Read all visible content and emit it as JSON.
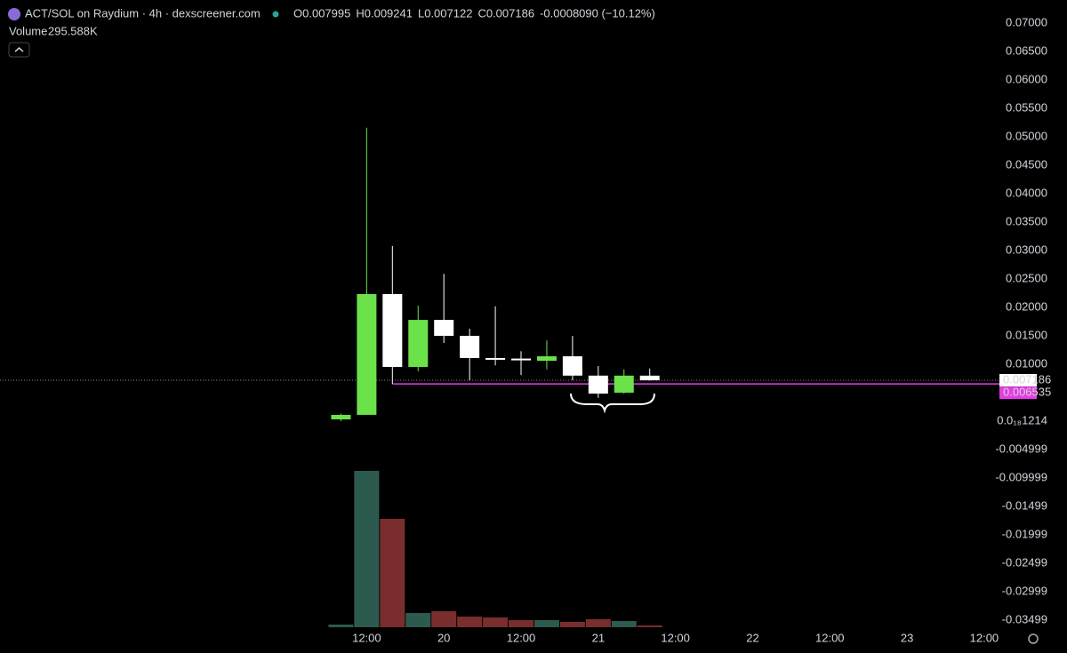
{
  "chart_data": {
    "type": "candlestick",
    "title": "ACT/SOL on Raydium · 4h · dexscreener.com",
    "ohlc_letters": [
      "O",
      "H",
      "L",
      "C"
    ],
    "change_label": "-0.0008090 (−10.12%)",
    "up_color": "#6be24a",
    "down_color": "#ffffff",
    "x": [
      8,
      12,
      16,
      20,
      24,
      28,
      32,
      36,
      40,
      44,
      48,
      52,
      56
    ],
    "open": [
      0.0003,
      0.0011,
      0.02234,
      0.00953,
      0.0178,
      0.015,
      0.0111,
      0.011,
      0.0106,
      0.0114,
      0.008,
      0.005,
      0.007995
    ],
    "high": [
      0.0013,
      0.0516,
      0.0308,
      0.0203,
      0.0259,
      0.01625,
      0.0202,
      0.0123,
      0.0142,
      0.015,
      0.0097,
      0.0091,
      0.009241
    ],
    "low": [
      0.0,
      0.0011,
      0.006535,
      0.00875,
      0.01375,
      0.0072,
      0.0098,
      0.0081,
      0.0091,
      0.0072,
      0.0041,
      0.0048,
      0.007122
    ],
    "close": [
      0.0011,
      0.02234,
      0.00953,
      0.0178,
      0.015,
      0.0111,
      0.011,
      0.0107,
      0.0114,
      0.008,
      0.00484,
      0.008,
      0.007186
    ],
    "volume": {
      "name": "Volume",
      "up_color": "#2d5a4f",
      "down_color": "#7a2d2d",
      "values": [
        450000,
        26400000,
        18300000,
        2400000,
        2700000,
        1800000,
        1650000,
        1200000,
        1200000,
        900000,
        1350000,
        1050000,
        295588
      ],
      "last_label": "295.588K",
      "label_color": "#e05a5a",
      "vlim": [
        0,
        30000000
      ]
    },
    "price_line": {
      "value": 0.006535,
      "color": "#e23ee2"
    },
    "xlim": [
      -45,
      110.5
    ],
    "xticks": [
      {
        "value": 12,
        "label": "12:00"
      },
      {
        "value": 24,
        "label": "20"
      },
      {
        "value": 36,
        "label": "12:00"
      },
      {
        "value": 48,
        "label": "21"
      },
      {
        "value": 60,
        "label": "12:00"
      },
      {
        "value": 72,
        "label": "22"
      },
      {
        "value": 84,
        "label": "12:00"
      },
      {
        "value": 96,
        "label": "23"
      },
      {
        "value": 108,
        "label": "12:00"
      }
    ],
    "ylim": [
      -0.03625,
      0.07406
    ],
    "yticks": [
      {
        "value": 0.07,
        "label": "0.07000"
      },
      {
        "value": 0.065,
        "label": "0.06500"
      },
      {
        "value": 0.06,
        "label": "0.06000"
      },
      {
        "value": 0.055,
        "label": "0.05500"
      },
      {
        "value": 0.05,
        "label": "0.05000"
      },
      {
        "value": 0.045,
        "label": "0.04500"
      },
      {
        "value": 0.04,
        "label": "0.04000"
      },
      {
        "value": 0.035,
        "label": "0.03500"
      },
      {
        "value": 0.03,
        "label": "0.03000"
      },
      {
        "value": 0.025,
        "label": "0.02500"
      },
      {
        "value": 0.02,
        "label": "0.02000"
      },
      {
        "value": 0.015,
        "label": "0.01500"
      },
      {
        "value": 0.01,
        "label": "0.01000"
      },
      {
        "value": 1.214e-19,
        "label": "0.0₁₈1214"
      },
      -0.004999,
      -0.009999,
      -0.01499,
      -0.01999,
      -0.02499,
      -0.02999,
      -0.03499
    ]
  }
}
